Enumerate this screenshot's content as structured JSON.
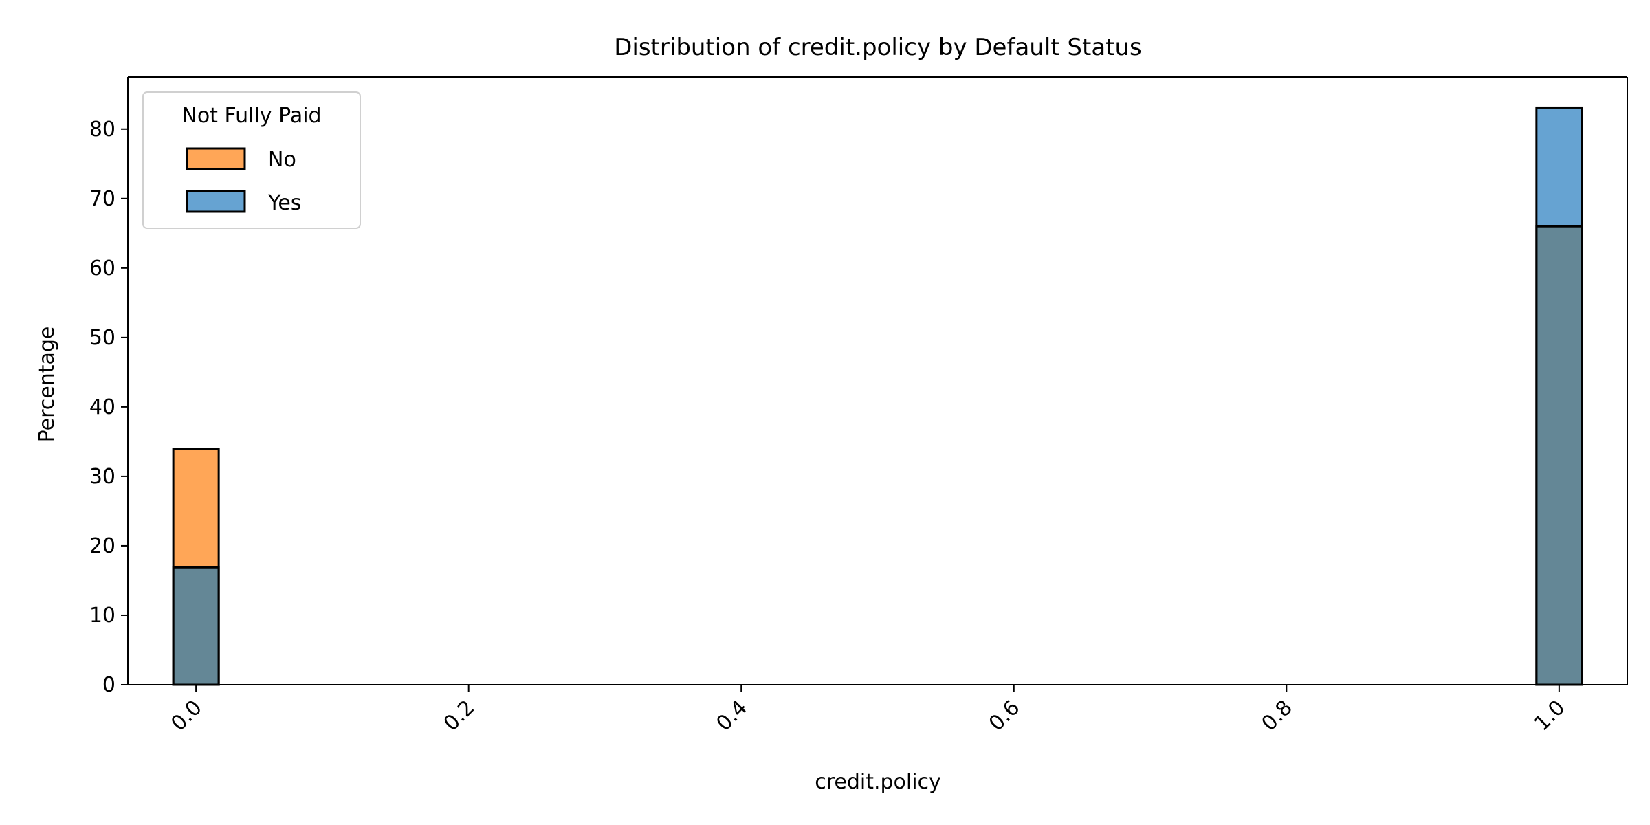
{
  "chart_data": {
    "type": "bar",
    "title": "Distribution of credit.policy by Default Status",
    "xlabel": "credit.policy",
    "ylabel": "Percentage",
    "xlim": [
      -0.05,
      1.05
    ],
    "ylim": [
      0,
      87.5
    ],
    "x_ticks": [
      {
        "value": 0.0,
        "label": "0.0"
      },
      {
        "value": 0.2,
        "label": "0.2"
      },
      {
        "value": 0.4,
        "label": "0.4"
      },
      {
        "value": 0.6,
        "label": "0.6"
      },
      {
        "value": 0.8,
        "label": "0.8"
      },
      {
        "value": 1.0,
        "label": "1.0"
      }
    ],
    "y_ticks": [
      {
        "value": 0,
        "label": "0"
      },
      {
        "value": 10,
        "label": "10"
      },
      {
        "value": 20,
        "label": "20"
      },
      {
        "value": 30,
        "label": "30"
      },
      {
        "value": 40,
        "label": "40"
      },
      {
        "value": 50,
        "label": "50"
      },
      {
        "value": 60,
        "label": "60"
      },
      {
        "value": 70,
        "label": "70"
      },
      {
        "value": 80,
        "label": "80"
      }
    ],
    "bin_width": 0.0333,
    "overlap_color": "#648796",
    "series": [
      {
        "name": "No",
        "color": "#ffa657",
        "bins": [
          {
            "x": 0.0,
            "value": 34.0
          },
          {
            "x": 1.0,
            "value": 66.0
          }
        ]
      },
      {
        "name": "Yes",
        "color": "#66a3d2",
        "bins": [
          {
            "x": 0.0,
            "value": 16.9
          },
          {
            "x": 1.0,
            "value": 83.1
          }
        ]
      }
    ],
    "legend": {
      "title": "Not Fully Paid",
      "placement": "top-left",
      "entries": [
        {
          "label": "No",
          "color": "#ffa657"
        },
        {
          "label": "Yes",
          "color": "#66a3d2"
        }
      ]
    },
    "grid": false
  }
}
